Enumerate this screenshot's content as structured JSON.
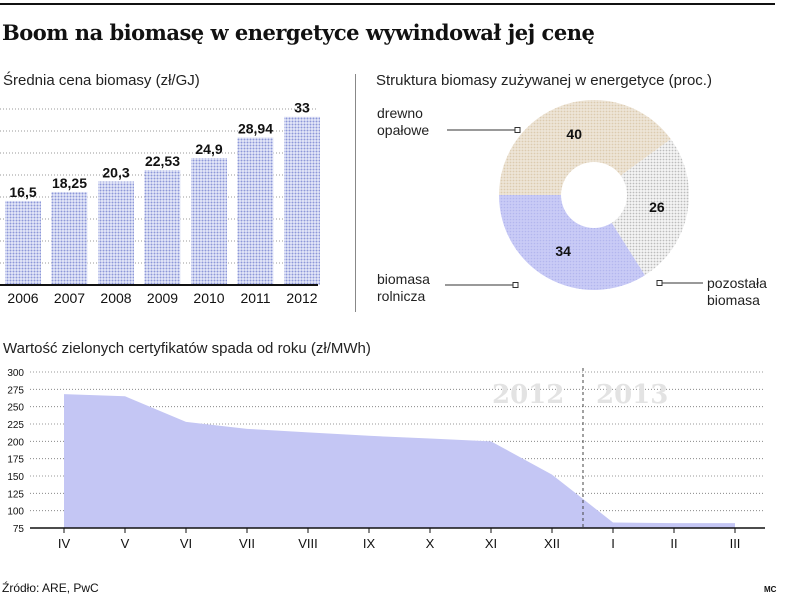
{
  "title": "Boom na biomasę w energetyce wywindował jej cenę",
  "source": "Źródło: ARE, PwC",
  "credit": "MC",
  "chart_data": [
    {
      "type": "bar",
      "title": "Średnia cena biomasy (zł/GJ)",
      "categories": [
        "2006",
        "2007",
        "2008",
        "2009",
        "2010",
        "2011",
        "2012"
      ],
      "values": [
        16.5,
        18.25,
        20.3,
        22.53,
        24.9,
        28.94,
        33
      ],
      "value_labels": [
        "16,5",
        "18,25",
        "20,3",
        "22,53",
        "24,9",
        "28,94",
        "33"
      ],
      "ylim": [
        0,
        36
      ],
      "color": "#b9c2ea"
    },
    {
      "type": "pie",
      "title": "Struktura biomasy zużywanej w energetyce (proc.)",
      "slices": [
        {
          "name": "drewno opałowe",
          "label_lines": [
            "drewno",
            "opałowe"
          ],
          "value": 40,
          "label": "40",
          "color": "#eadfcf"
        },
        {
          "name": "pozostała biomasa",
          "label_lines": [
            "pozostała",
            "biomasa"
          ],
          "value": 26,
          "label": "26",
          "color": "#d8d8d8"
        },
        {
          "name": "biomasa rolnicza",
          "label_lines": [
            "biomasa",
            "rolnicza"
          ],
          "value": 34,
          "label": "34",
          "color": "#c4c6f4"
        }
      ]
    },
    {
      "type": "area",
      "title": "Wartość zielonych certyfikatów spada od roku (zł/MWh)",
      "categories": [
        "IV",
        "V",
        "VI",
        "VII",
        "VIII",
        "IX",
        "X",
        "XI",
        "XII",
        "I",
        "II",
        "III"
      ],
      "values": [
        268,
        265,
        228,
        218,
        213,
        208,
        204,
        200,
        152,
        83,
        82,
        82
      ],
      "yticks": [
        75,
        100,
        125,
        150,
        175,
        200,
        225,
        250,
        275,
        300
      ],
      "ylim": [
        75,
        300
      ],
      "year_labels": [
        "2012",
        "2013"
      ],
      "color": "#c4c6f4"
    }
  ]
}
